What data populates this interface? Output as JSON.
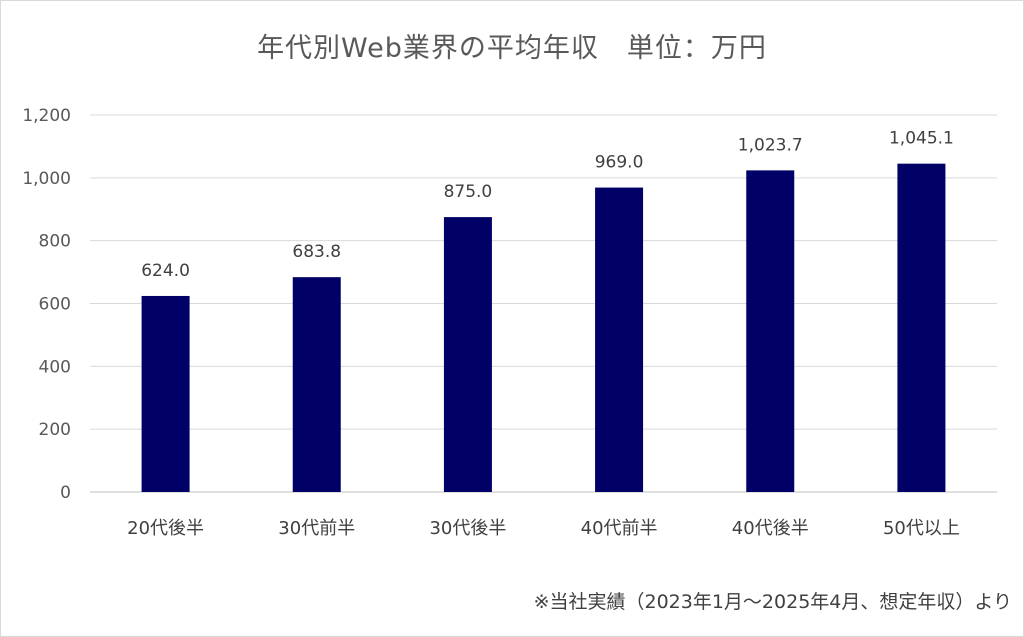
{
  "chart_data": {
    "type": "bar",
    "title": "年代別Web業界の平均年収　単位：万円",
    "categories": [
      "20代後半",
      "30代前半",
      "30代後半",
      "40代前半",
      "40代後半",
      "50代以上"
    ],
    "values": [
      624.0,
      683.8,
      875.0,
      969.0,
      1023.7,
      1045.1
    ],
    "data_labels": [
      "624.0",
      "683.8",
      "875.0",
      "969.0",
      "1,023.7",
      "1,045.1"
    ],
    "y_ticks": [
      "0",
      "200",
      "400",
      "600",
      "800",
      "1,000",
      "1,200"
    ],
    "ylim": [
      0,
      1200
    ],
    "xlabel": "",
    "ylabel": "",
    "grid": true,
    "bar_color": "#000066",
    "footnote": "※当社実績（2023年1月～2025年4月、想定年収）より"
  }
}
